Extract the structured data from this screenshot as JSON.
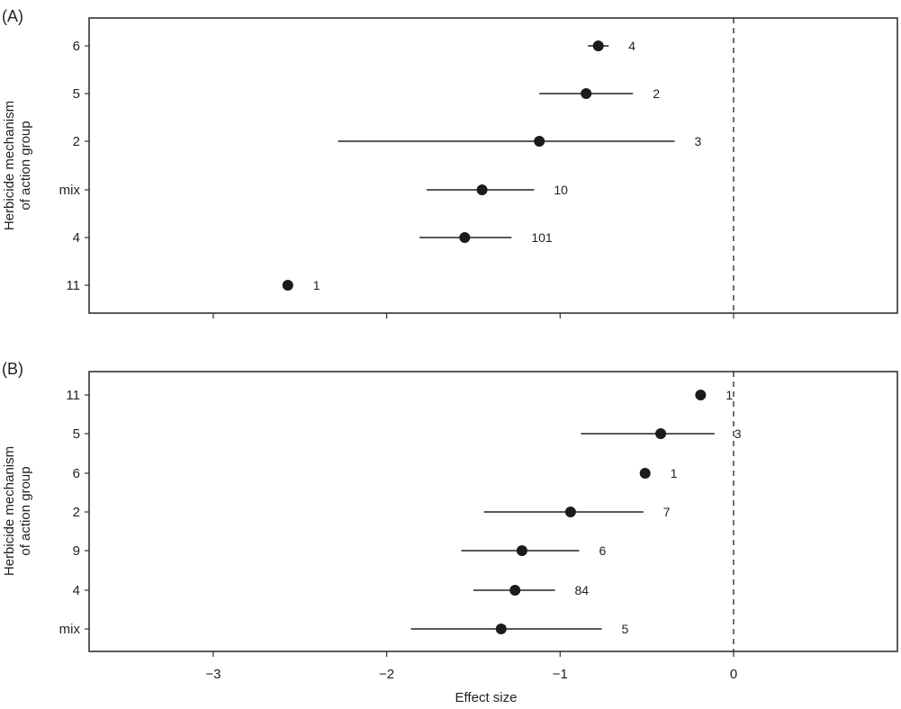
{
  "chart_data": [
    {
      "panel": "(A)",
      "type": "scatter",
      "subtype": "forest-plot",
      "ylabel": "Herbicide mechanism of action group",
      "xlabel": "",
      "xlim": [
        -3.7,
        0.95
      ],
      "xticks": [
        -3,
        -2,
        -1,
        0
      ],
      "xtick_labels_shown": false,
      "reference_line": 0,
      "categories": [
        "6",
        "5",
        "2",
        "mix",
        "4",
        "11"
      ],
      "points": [
        {
          "group": "6",
          "effect": -0.78,
          "ci_low": -0.84,
          "ci_high": -0.72,
          "n": "4"
        },
        {
          "group": "5",
          "effect": -0.85,
          "ci_low": -1.12,
          "ci_high": -0.58,
          "n": "2"
        },
        {
          "group": "2",
          "effect": -1.12,
          "ci_low": -2.28,
          "ci_high": -0.34,
          "n": "3"
        },
        {
          "group": "mix",
          "effect": -1.45,
          "ci_low": -1.77,
          "ci_high": -1.15,
          "n": "10"
        },
        {
          "group": "4",
          "effect": -1.55,
          "ci_low": -1.81,
          "ci_high": -1.28,
          "n": "101"
        },
        {
          "group": "11",
          "effect": -2.57,
          "ci_low": null,
          "ci_high": null,
          "n": "1"
        }
      ]
    },
    {
      "panel": "(B)",
      "type": "scatter",
      "subtype": "forest-plot",
      "ylabel": "Herbicide mechanism of action group",
      "xlabel": "Effect size",
      "xlim": [
        -3.7,
        0.95
      ],
      "xticks": [
        -3,
        -2,
        -1,
        0
      ],
      "xtick_labels": [
        "−3",
        "−2",
        "−1",
        "0"
      ],
      "reference_line": 0,
      "categories": [
        "11",
        "5",
        "6",
        "2",
        "9",
        "4",
        "mix"
      ],
      "points": [
        {
          "group": "11",
          "effect": -0.19,
          "ci_low": null,
          "ci_high": null,
          "n": "1"
        },
        {
          "group": "5",
          "effect": -0.42,
          "ci_low": -0.88,
          "ci_high": -0.11,
          "n": "3"
        },
        {
          "group": "6",
          "effect": -0.51,
          "ci_low": null,
          "ci_high": null,
          "n": "1"
        },
        {
          "group": "2",
          "effect": -0.94,
          "ci_low": -1.44,
          "ci_high": -0.52,
          "n": "7"
        },
        {
          "group": "9",
          "effect": -1.22,
          "ci_low": -1.57,
          "ci_high": -0.89,
          "n": "6"
        },
        {
          "group": "4",
          "effect": -1.26,
          "ci_low": -1.5,
          "ci_high": -1.03,
          "n": "84"
        },
        {
          "group": "mix",
          "effect": -1.34,
          "ci_low": -1.86,
          "ci_high": -0.76,
          "n": "5"
        }
      ]
    }
  ],
  "labels": {
    "panel_a": "(A)",
    "panel_b": "(B)",
    "ylabel_line1": "Herbicide mechanism",
    "ylabel_line2": "of action group",
    "xlabel": "Effect size"
  }
}
